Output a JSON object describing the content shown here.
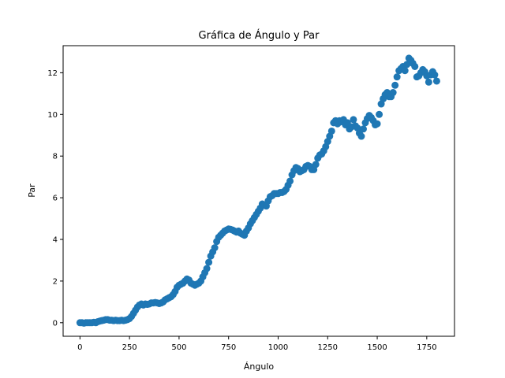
{
  "chart_data": {
    "type": "scatter",
    "title": "Gráfica de Ángulo y Par",
    "xlabel": "Ángulo",
    "ylabel": "Par",
    "xlim": [
      -85,
      1890
    ],
    "ylim": [
      -0.65,
      13.3
    ],
    "xticks": [
      0,
      250,
      500,
      750,
      1000,
      1250,
      1500,
      1750
    ],
    "yticks": [
      0,
      2,
      4,
      6,
      8,
      10,
      12
    ],
    "grid": false,
    "marker_color": "#1f77b4",
    "series": [
      {
        "points": [
          [
            0,
            0
          ],
          [
            10,
            0
          ],
          [
            20,
            -0.02
          ],
          [
            30,
            0
          ],
          [
            40,
            0
          ],
          [
            50,
            0
          ],
          [
            60,
            0
          ],
          [
            70,
            0.02
          ],
          [
            80,
            0
          ],
          [
            90,
            0.05
          ],
          [
            100,
            0.08
          ],
          [
            110,
            0.1
          ],
          [
            120,
            0.12
          ],
          [
            130,
            0.15
          ],
          [
            140,
            0.15
          ],
          [
            150,
            0.12
          ],
          [
            160,
            0.12
          ],
          [
            170,
            0.1
          ],
          [
            180,
            0.12
          ],
          [
            190,
            0.1
          ],
          [
            200,
            0.1
          ],
          [
            210,
            0.12
          ],
          [
            220,
            0.1
          ],
          [
            230,
            0.12
          ],
          [
            240,
            0.15
          ],
          [
            250,
            0.2
          ],
          [
            260,
            0.3
          ],
          [
            270,
            0.45
          ],
          [
            280,
            0.6
          ],
          [
            290,
            0.75
          ],
          [
            300,
            0.85
          ],
          [
            310,
            0.9
          ],
          [
            320,
            0.85
          ],
          [
            330,
            0.9
          ],
          [
            340,
            0.88
          ],
          [
            350,
            0.9
          ],
          [
            360,
            0.95
          ],
          [
            370,
            0.95
          ],
          [
            380,
            0.97
          ],
          [
            390,
            0.95
          ],
          [
            400,
            0.92
          ],
          [
            410,
            0.95
          ],
          [
            420,
            1.0
          ],
          [
            430,
            1.1
          ],
          [
            440,
            1.15
          ],
          [
            450,
            1.2
          ],
          [
            460,
            1.25
          ],
          [
            470,
            1.35
          ],
          [
            480,
            1.5
          ],
          [
            490,
            1.7
          ],
          [
            500,
            1.8
          ],
          [
            510,
            1.85
          ],
          [
            520,
            1.9
          ],
          [
            530,
            2.0
          ],
          [
            540,
            2.1
          ],
          [
            550,
            2.05
          ],
          [
            560,
            1.9
          ],
          [
            570,
            1.85
          ],
          [
            580,
            1.8
          ],
          [
            590,
            1.85
          ],
          [
            600,
            1.9
          ],
          [
            610,
            2.0
          ],
          [
            620,
            2.2
          ],
          [
            630,
            2.4
          ],
          [
            640,
            2.6
          ],
          [
            650,
            2.9
          ],
          [
            660,
            3.2
          ],
          [
            670,
            3.4
          ],
          [
            680,
            3.6
          ],
          [
            690,
            3.9
          ],
          [
            700,
            4.1
          ],
          [
            710,
            4.2
          ],
          [
            720,
            4.3
          ],
          [
            730,
            4.4
          ],
          [
            740,
            4.45
          ],
          [
            750,
            4.5
          ],
          [
            760,
            4.48
          ],
          [
            770,
            4.45
          ],
          [
            780,
            4.4
          ],
          [
            790,
            4.35
          ],
          [
            800,
            4.4
          ],
          [
            810,
            4.3
          ],
          [
            820,
            4.25
          ],
          [
            830,
            4.2
          ],
          [
            840,
            4.4
          ],
          [
            850,
            4.55
          ],
          [
            860,
            4.75
          ],
          [
            870,
            4.9
          ],
          [
            880,
            5.05
          ],
          [
            890,
            5.2
          ],
          [
            900,
            5.35
          ],
          [
            910,
            5.5
          ],
          [
            920,
            5.7
          ],
          [
            930,
            5.65
          ],
          [
            940,
            5.6
          ],
          [
            950,
            5.85
          ],
          [
            960,
            6.05
          ],
          [
            970,
            6.1
          ],
          [
            980,
            6.2
          ],
          [
            990,
            6.2
          ],
          [
            1000,
            6.2
          ],
          [
            1010,
            6.25
          ],
          [
            1020,
            6.25
          ],
          [
            1030,
            6.3
          ],
          [
            1040,
            6.4
          ],
          [
            1050,
            6.6
          ],
          [
            1060,
            6.8
          ],
          [
            1070,
            7.1
          ],
          [
            1080,
            7.3
          ],
          [
            1090,
            7.45
          ],
          [
            1100,
            7.4
          ],
          [
            1110,
            7.25
          ],
          [
            1120,
            7.3
          ],
          [
            1130,
            7.35
          ],
          [
            1140,
            7.5
          ],
          [
            1150,
            7.55
          ],
          [
            1160,
            7.5
          ],
          [
            1170,
            7.35
          ],
          [
            1180,
            7.35
          ],
          [
            1190,
            7.6
          ],
          [
            1200,
            7.9
          ],
          [
            1210,
            8.05
          ],
          [
            1220,
            8.1
          ],
          [
            1230,
            8.25
          ],
          [
            1240,
            8.45
          ],
          [
            1250,
            8.7
          ],
          [
            1260,
            8.95
          ],
          [
            1270,
            9.2
          ],
          [
            1280,
            9.6
          ],
          [
            1290,
            9.7
          ],
          [
            1300,
            9.55
          ],
          [
            1310,
            9.7
          ],
          [
            1320,
            9.65
          ],
          [
            1330,
            9.75
          ],
          [
            1340,
            9.5
          ],
          [
            1350,
            9.6
          ],
          [
            1360,
            9.3
          ],
          [
            1370,
            9.4
          ],
          [
            1380,
            9.75
          ],
          [
            1390,
            9.45
          ],
          [
            1400,
            9.35
          ],
          [
            1410,
            9.1
          ],
          [
            1420,
            8.95
          ],
          [
            1430,
            9.3
          ],
          [
            1440,
            9.6
          ],
          [
            1450,
            9.8
          ],
          [
            1460,
            9.95
          ],
          [
            1470,
            9.85
          ],
          [
            1480,
            9.7
          ],
          [
            1490,
            9.5
          ],
          [
            1500,
            9.55
          ],
          [
            1510,
            10.0
          ],
          [
            1520,
            10.5
          ],
          [
            1530,
            10.75
          ],
          [
            1540,
            10.95
          ],
          [
            1550,
            11.05
          ],
          [
            1560,
            10.85
          ],
          [
            1570,
            10.85
          ],
          [
            1580,
            11.05
          ],
          [
            1590,
            11.4
          ],
          [
            1600,
            11.8
          ],
          [
            1610,
            12.1
          ],
          [
            1620,
            12.2
          ],
          [
            1630,
            12.3
          ],
          [
            1640,
            12.1
          ],
          [
            1650,
            12.4
          ],
          [
            1660,
            12.7
          ],
          [
            1670,
            12.6
          ],
          [
            1680,
            12.45
          ],
          [
            1690,
            12.3
          ],
          [
            1700,
            11.8
          ],
          [
            1710,
            11.85
          ],
          [
            1720,
            12.0
          ],
          [
            1730,
            12.15
          ],
          [
            1740,
            12.05
          ],
          [
            1750,
            11.85
          ],
          [
            1760,
            11.55
          ],
          [
            1770,
            11.9
          ],
          [
            1780,
            12.05
          ],
          [
            1790,
            11.9
          ],
          [
            1800,
            11.6
          ]
        ]
      }
    ]
  }
}
